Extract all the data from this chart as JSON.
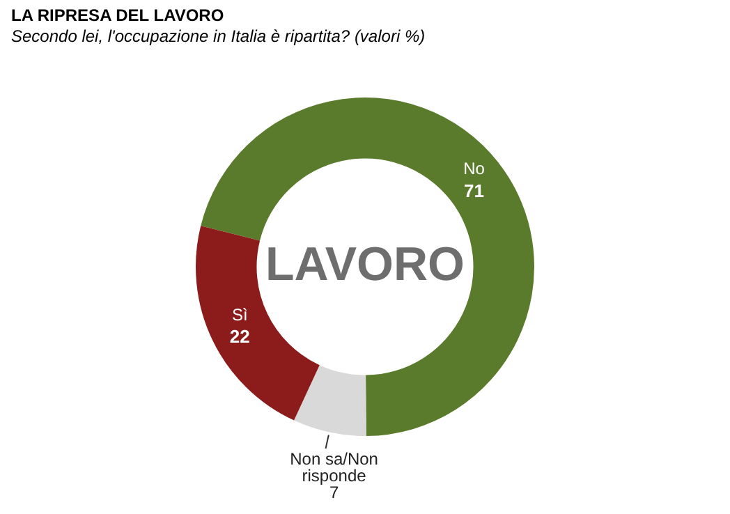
{
  "chart_data": {
    "type": "donut",
    "title": "LA RIPRESA DEL LAVORO",
    "subtitle": "Secondo lei, l'occupazione in Italia è ripartita? (valori %)",
    "categories": [
      "No",
      "Non sa/Non risponde",
      "Sì"
    ],
    "values": [
      71,
      7,
      22
    ],
    "colors": [
      "#5b7b2c",
      "#d9d9d9",
      "#8c1b1b"
    ],
    "data_labels": true,
    "legend": false,
    "annotations": [
      "LAVORO"
    ]
  }
}
